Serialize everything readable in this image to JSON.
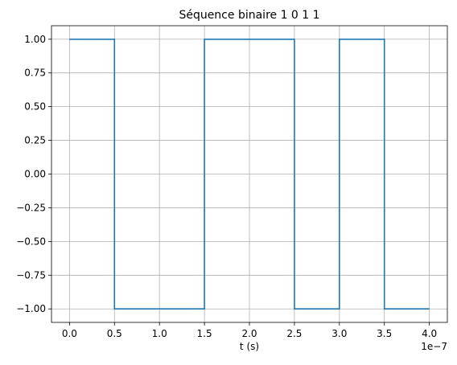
{
  "chart_data": {
    "type": "line",
    "title": "Séquence binaire 1 0 1 1",
    "xlabel": "t (s)",
    "ylabel": "",
    "x_offset_text": "1e−7",
    "xlim": [
      -0.2,
      4.2
    ],
    "ylim": [
      -1.1,
      1.1
    ],
    "xticks": [
      0.0,
      0.5,
      1.0,
      1.5,
      2.0,
      2.5,
      3.0,
      3.5,
      4.0
    ],
    "xtick_labels": [
      "0.0",
      "0.5",
      "1.0",
      "1.5",
      "2.0",
      "2.5",
      "3.0",
      "3.5",
      "4.0"
    ],
    "yticks": [
      1.0,
      0.75,
      0.5,
      0.25,
      0.0,
      -0.25,
      -0.5,
      -0.75,
      -1.0
    ],
    "ytick_labels": [
      "1.00",
      "0.75",
      "0.50",
      "0.25",
      "0.00",
      "−0.25",
      "−0.50",
      "−0.75",
      "−1.00"
    ],
    "grid": true,
    "series": [
      {
        "color": "#1f77b4",
        "x": [
          0.0,
          0.5,
          0.5,
          1.5,
          1.5,
          2.5,
          2.5,
          3.0,
          3.0,
          3.5,
          3.5,
          4.0
        ],
        "y": [
          1,
          1,
          -1,
          -1,
          1,
          1,
          -1,
          -1,
          1,
          1,
          -1,
          -1
        ]
      }
    ]
  }
}
